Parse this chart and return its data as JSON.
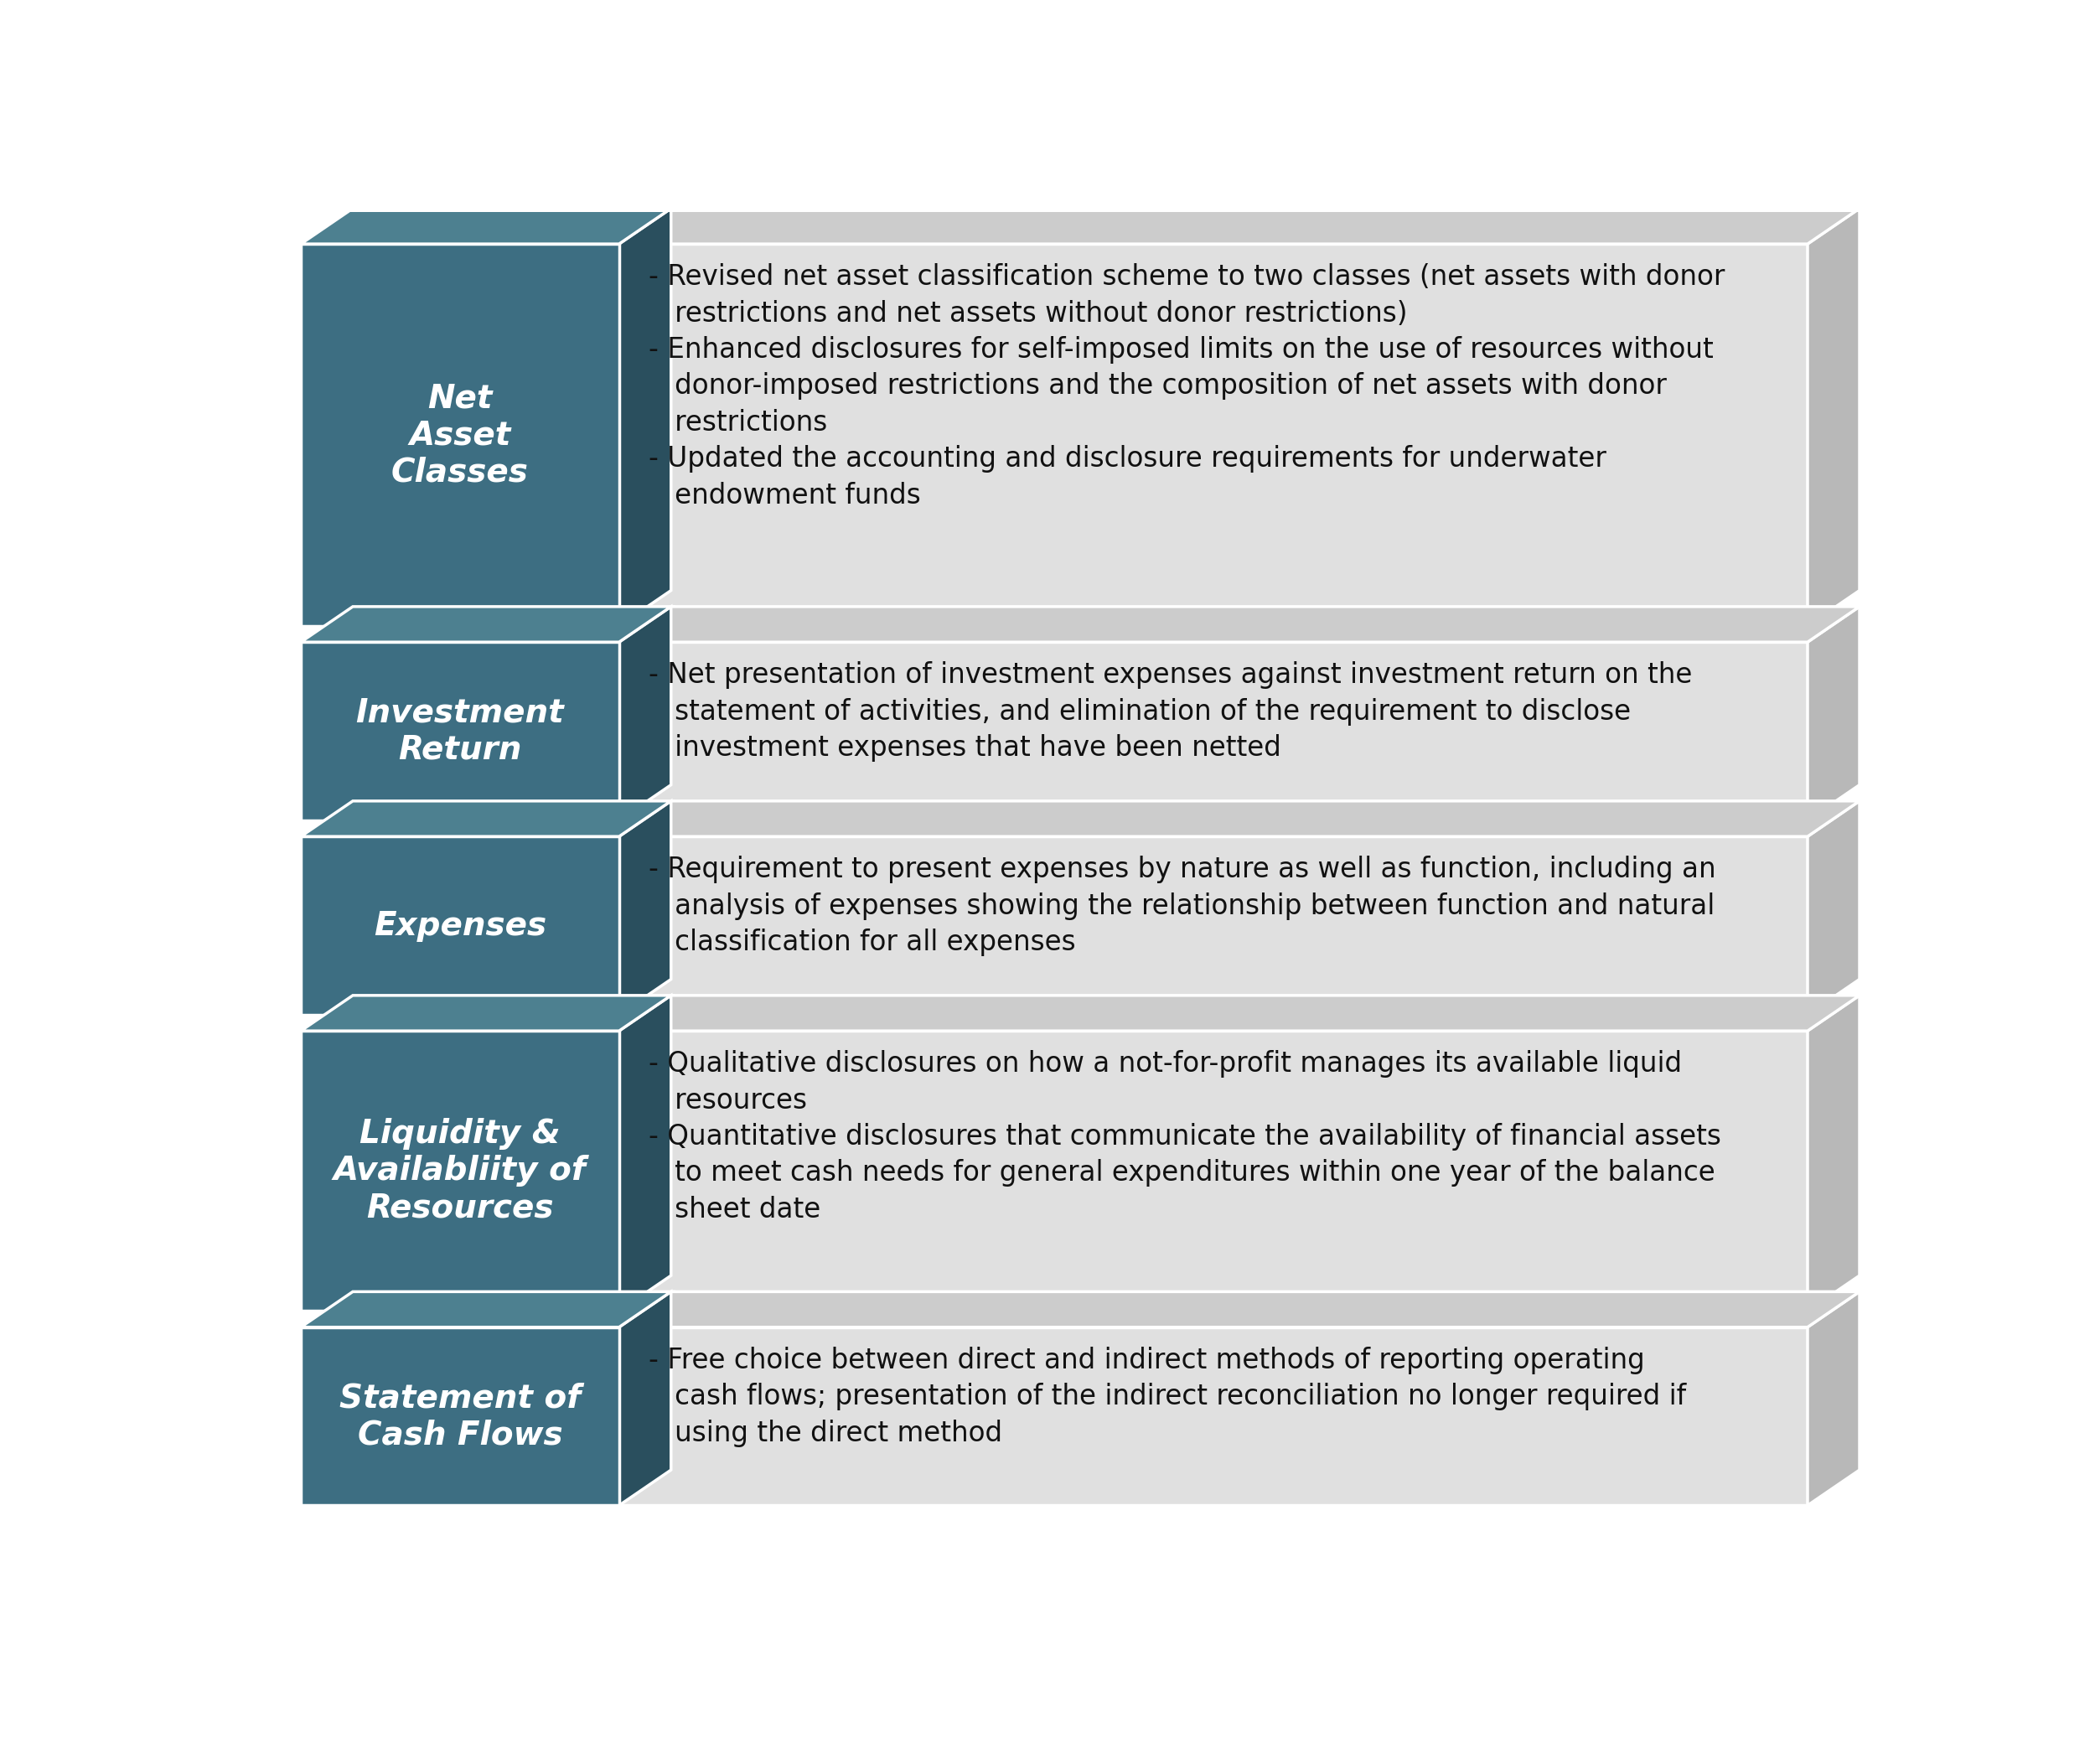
{
  "bg_color": "#ffffff",
  "label_bg_color": "#3d6e82",
  "label_top_color": "#4d8090",
  "label_side_color": "#2a4f5e",
  "content_bg_color": "#e0e0e0",
  "content_top_color": "#cccccc",
  "content_side_color": "#b8b8b8",
  "label_text_color": "#ffffff",
  "content_text_color": "#111111",
  "rows": [
    {
      "label": "Net\nAsset\nClasses",
      "bullets": "- Revised net asset classification scheme to two classes (net assets with donor\n   restrictions and net assets without donor restrictions)\n- Enhanced disclosures for self-imposed limits on the use of resources without\n   donor-imposed restrictions and the composition of net assets with donor\n   restrictions\n- Updated the accounting and disclosure requirements for underwater\n   endowment funds"
    },
    {
      "label": "Investment\nReturn",
      "bullets": "- Net presentation of investment expenses against investment return on the\n   statement of activities, and elimination of the requirement to disclose\n   investment expenses that have been netted"
    },
    {
      "label": "Expenses",
      "bullets": "- Requirement to present expenses by nature as well as function, including an\n   analysis of expenses showing the relationship between function and natural\n   classification for all expenses"
    },
    {
      "label": "Liquidity &\nAvailabliity of\nResources",
      "bullets": "- Qualitative disclosures on how a not-for-profit manages its available liquid\n   resources\n- Quantitative disclosures that communicate the availability of financial assets\n   to meet cash needs for general expenditures within one year of the balance\n   sheet date"
    },
    {
      "label": "Statement of\nCash Flows",
      "bullets": "- Free choice between direct and indirect methods of reporting operating\n   cash flows; presentation of the indirect reconciliation no longer required if\n   using the direct method"
    }
  ],
  "label_fontsize": 28,
  "content_fontsize": 23.5,
  "line_counts": [
    7.5,
    3.5,
    3.5,
    5.5,
    3.5
  ]
}
